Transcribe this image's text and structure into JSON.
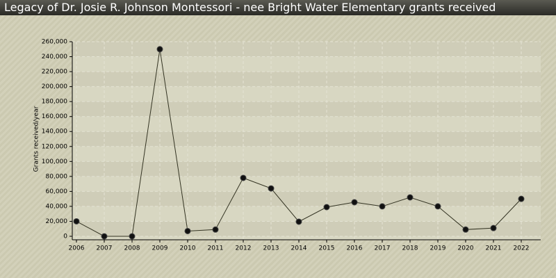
{
  "chart_data": {
    "type": "line",
    "title": "Legacy of Dr. Josie R. Johnson Montessori - nee Bright Water Elementary grants received",
    "y_label": "Grants received/year",
    "categories": [
      "2006",
      "2007",
      "2008",
      "2009",
      "2010",
      "2011",
      "2012",
      "2013",
      "2014",
      "2015",
      "2016",
      "2017",
      "2018",
      "2019",
      "2020",
      "2021",
      "2022"
    ],
    "series": [
      {
        "name": "Grants received/year",
        "color": "#333322",
        "values": [
          20000,
          0,
          0,
          250000,
          7000,
          9000,
          78000,
          64000,
          19500,
          39000,
          45500,
          40000,
          52000,
          40000,
          9000,
          11000,
          50000
        ]
      }
    ],
    "ylim": [
      0,
      260000
    ],
    "yticks": [
      0,
      {
        "value": 20000,
        "label": "20,000"
      },
      {
        "value": 40000,
        "label": "40,000"
      },
      {
        "value": 60000,
        "label": "60,000"
      },
      {
        "value": 80000,
        "label": "80,000"
      },
      {
        "value": 100000,
        "label": "100,000"
      },
      {
        "value": 120000,
        "label": "120,000"
      },
      {
        "value": 140000,
        "label": "140,000"
      },
      {
        "value": 160000,
        "label": "160,000"
      },
      {
        "value": 180000,
        "label": "180,000"
      },
      {
        "value": 200000,
        "label": "200,000"
      },
      {
        "value": 220000,
        "label": "220,000"
      },
      {
        "value": 240000,
        "label": "240,000"
      },
      {
        "value": 260000,
        "label": "260,000"
      }
    ],
    "grid": true
  }
}
